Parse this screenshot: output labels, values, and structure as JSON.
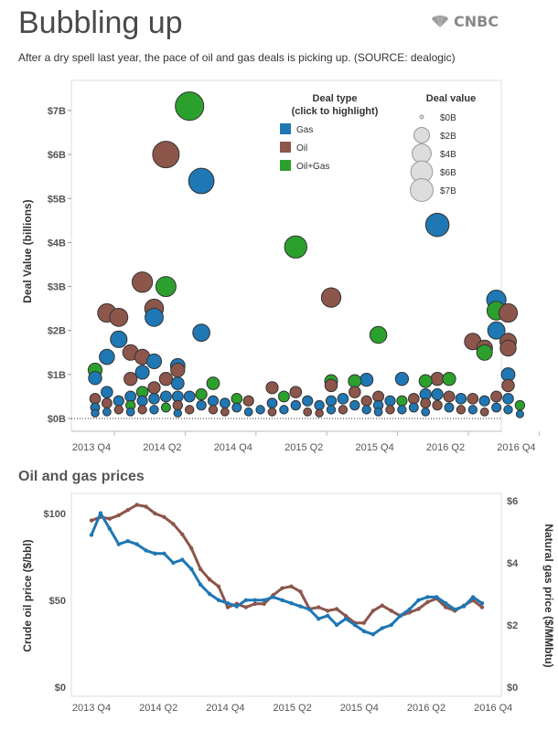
{
  "header": {
    "title": "Bubbling up",
    "logo_text": "CNBC",
    "subtitle": "After a dry spell last year, the pace of oil and gas deals is picking up. (SOURCE: dealogic)"
  },
  "section2": {
    "title": "Oil and gas prices"
  },
  "colors": {
    "Gas": "#1f77b4",
    "Oil": "#8c564b",
    "Oil+Gas": "#2ca02c",
    "gas_line": "#1f77b4",
    "oil_line": "#8c564b"
  },
  "chart_data": [
    {
      "type": "scatter",
      "title": "",
      "ylabel": "Deal Value (billions)",
      "xlabel": "",
      "ylim": [
        0,
        7.7
      ],
      "x_ticks": [
        "2013 Q4",
        "2014 Q2",
        "2014 Q4",
        "2015 Q2",
        "2015 Q4",
        "2016 Q2",
        "2016 Q4"
      ],
      "y_ticks": [
        "$0B",
        "$1B",
        "$2B",
        "$3B",
        "$4B",
        "$5B",
        "$6B",
        "$7B"
      ],
      "legend": {
        "type_title": "Deal type",
        "type_subtitle": "(click to highlight)",
        "types": [
          "Gas",
          "Oil",
          "Oil+Gas"
        ],
        "size_title": "Deal value",
        "sizes": [
          {
            "label": "$0B",
            "value": 0
          },
          {
            "label": "$2B",
            "value": 2
          },
          {
            "label": "$4B",
            "value": 4
          },
          {
            "label": "$6B",
            "value": 6
          },
          {
            "label": "$7B",
            "value": 7
          }
        ]
      },
      "points": [
        {
          "month": 0,
          "value": 1.1,
          "type": "Oil+Gas"
        },
        {
          "month": 0,
          "value": 0.92,
          "type": "Gas"
        },
        {
          "month": 0,
          "value": 0.45,
          "type": "Oil"
        },
        {
          "month": 0,
          "value": 0.25,
          "type": "Gas"
        },
        {
          "month": 0,
          "value": 0.12,
          "type": "Gas"
        },
        {
          "month": 1,
          "value": 2.4,
          "type": "Oil"
        },
        {
          "month": 1,
          "value": 1.4,
          "type": "Gas"
        },
        {
          "month": 1,
          "value": 0.6,
          "type": "Gas"
        },
        {
          "month": 1,
          "value": 0.35,
          "type": "Oil"
        },
        {
          "month": 1,
          "value": 0.15,
          "type": "Gas"
        },
        {
          "month": 2,
          "value": 2.3,
          "type": "Oil"
        },
        {
          "month": 2,
          "value": 1.8,
          "type": "Gas"
        },
        {
          "month": 2,
          "value": 0.4,
          "type": "Gas"
        },
        {
          "month": 2,
          "value": 0.2,
          "type": "Oil"
        },
        {
          "month": 3,
          "value": 1.5,
          "type": "Oil"
        },
        {
          "month": 3,
          "value": 0.9,
          "type": "Oil"
        },
        {
          "month": 3,
          "value": 0.5,
          "type": "Gas"
        },
        {
          "month": 3,
          "value": 0.3,
          "type": "Oil+Gas"
        },
        {
          "month": 3,
          "value": 0.15,
          "type": "Gas"
        },
        {
          "month": 4,
          "value": 3.1,
          "type": "Oil"
        },
        {
          "month": 4,
          "value": 1.4,
          "type": "Oil"
        },
        {
          "month": 4,
          "value": 1.05,
          "type": "Gas"
        },
        {
          "month": 4,
          "value": 0.6,
          "type": "Oil+Gas"
        },
        {
          "month": 4,
          "value": 0.4,
          "type": "Gas"
        },
        {
          "month": 4,
          "value": 0.2,
          "type": "Oil"
        },
        {
          "month": 5,
          "value": 2.5,
          "type": "Oil"
        },
        {
          "month": 5,
          "value": 2.3,
          "type": "Gas"
        },
        {
          "month": 5,
          "value": 1.3,
          "type": "Gas"
        },
        {
          "month": 5,
          "value": 0.7,
          "type": "Oil"
        },
        {
          "month": 5,
          "value": 0.45,
          "type": "Gas"
        },
        {
          "month": 5,
          "value": 0.2,
          "type": "Gas"
        },
        {
          "month": 6,
          "value": 3.0,
          "type": "Oil+Gas"
        },
        {
          "month": 6,
          "value": 6.0,
          "type": "Oil"
        },
        {
          "month": 6,
          "value": 0.9,
          "type": "Oil"
        },
        {
          "month": 6,
          "value": 0.5,
          "type": "Gas"
        },
        {
          "month": 6,
          "value": 0.25,
          "type": "Oil+Gas"
        },
        {
          "month": 7,
          "value": 1.2,
          "type": "Gas"
        },
        {
          "month": 7,
          "value": 1.1,
          "type": "Oil"
        },
        {
          "month": 7,
          "value": 0.8,
          "type": "Gas"
        },
        {
          "month": 7,
          "value": 0.5,
          "type": "Gas"
        },
        {
          "month": 7,
          "value": 0.3,
          "type": "Oil"
        },
        {
          "month": 7,
          "value": 0.12,
          "type": "Gas"
        },
        {
          "month": 8,
          "value": 7.1,
          "type": "Oil+Gas"
        },
        {
          "month": 8,
          "value": 0.5,
          "type": "Gas"
        },
        {
          "month": 8,
          "value": 0.2,
          "type": "Oil"
        },
        {
          "month": 9,
          "value": 5.4,
          "type": "Gas"
        },
        {
          "month": 9,
          "value": 1.95,
          "type": "Gas"
        },
        {
          "month": 9,
          "value": 0.55,
          "type": "Oil+Gas"
        },
        {
          "month": 9,
          "value": 0.3,
          "type": "Gas"
        },
        {
          "month": 10,
          "value": 0.8,
          "type": "Oil+Gas"
        },
        {
          "month": 10,
          "value": 0.4,
          "type": "Gas"
        },
        {
          "month": 10,
          "value": 0.2,
          "type": "Oil"
        },
        {
          "month": 11,
          "value": 0.35,
          "type": "Gas"
        },
        {
          "month": 11,
          "value": 0.15,
          "type": "Oil"
        },
        {
          "month": 12,
          "value": 0.45,
          "type": "Oil+Gas"
        },
        {
          "month": 12,
          "value": 0.25,
          "type": "Gas"
        },
        {
          "month": 13,
          "value": 0.4,
          "type": "Oil"
        },
        {
          "month": 13,
          "value": 0.15,
          "type": "Gas"
        },
        {
          "month": 14,
          "value": 0.2,
          "type": "Gas"
        },
        {
          "month": 15,
          "value": 0.7,
          "type": "Oil"
        },
        {
          "month": 15,
          "value": 0.35,
          "type": "Gas"
        },
        {
          "month": 15,
          "value": 0.15,
          "type": "Oil"
        },
        {
          "month": 16,
          "value": 0.5,
          "type": "Oil+Gas"
        },
        {
          "month": 16,
          "value": 0.2,
          "type": "Gas"
        },
        {
          "month": 17,
          "value": 3.9,
          "type": "Oil+Gas"
        },
        {
          "month": 17,
          "value": 0.6,
          "type": "Oil"
        },
        {
          "month": 17,
          "value": 0.3,
          "type": "Gas"
        },
        {
          "month": 18,
          "value": 0.4,
          "type": "Gas"
        },
        {
          "month": 18,
          "value": 0.15,
          "type": "Oil"
        },
        {
          "month": 19,
          "value": 0.3,
          "type": "Gas"
        },
        {
          "month": 19,
          "value": 0.12,
          "type": "Oil"
        },
        {
          "month": 20,
          "value": 2.75,
          "type": "Oil"
        },
        {
          "month": 20,
          "value": 0.85,
          "type": "Oil+Gas"
        },
        {
          "month": 20,
          "value": 0.75,
          "type": "Oil"
        },
        {
          "month": 20,
          "value": 0.4,
          "type": "Gas"
        },
        {
          "month": 20,
          "value": 0.2,
          "type": "Gas"
        },
        {
          "month": 21,
          "value": 0.45,
          "type": "Gas"
        },
        {
          "month": 21,
          "value": 0.2,
          "type": "Oil"
        },
        {
          "month": 22,
          "value": 0.85,
          "type": "Oil+Gas"
        },
        {
          "month": 22,
          "value": 0.6,
          "type": "Oil"
        },
        {
          "month": 22,
          "value": 0.3,
          "type": "Gas"
        },
        {
          "month": 23,
          "value": 0.88,
          "type": "Gas"
        },
        {
          "month": 23,
          "value": 0.4,
          "type": "Oil"
        },
        {
          "month": 23,
          "value": 0.2,
          "type": "Gas"
        },
        {
          "month": 24,
          "value": 1.9,
          "type": "Oil+Gas"
        },
        {
          "month": 24,
          "value": 0.5,
          "type": "Oil"
        },
        {
          "month": 24,
          "value": 0.3,
          "type": "Gas"
        },
        {
          "month": 24,
          "value": 0.15,
          "type": "Gas"
        },
        {
          "month": 25,
          "value": 0.4,
          "type": "Gas"
        },
        {
          "month": 25,
          "value": 0.2,
          "type": "Oil"
        },
        {
          "month": 26,
          "value": 0.9,
          "type": "Gas"
        },
        {
          "month": 26,
          "value": 0.4,
          "type": "Oil+Gas"
        },
        {
          "month": 26,
          "value": 0.2,
          "type": "Gas"
        },
        {
          "month": 27,
          "value": 0.45,
          "type": "Oil"
        },
        {
          "month": 27,
          "value": 0.25,
          "type": "Gas"
        },
        {
          "month": 28,
          "value": 0.85,
          "type": "Oil+Gas"
        },
        {
          "month": 28,
          "value": 0.55,
          "type": "Gas"
        },
        {
          "month": 28,
          "value": 0.35,
          "type": "Oil"
        },
        {
          "month": 28,
          "value": 0.15,
          "type": "Gas"
        },
        {
          "month": 29,
          "value": 4.4,
          "type": "Gas"
        },
        {
          "month": 29,
          "value": 0.9,
          "type": "Oil"
        },
        {
          "month": 29,
          "value": 0.55,
          "type": "Gas"
        },
        {
          "month": 29,
          "value": 0.3,
          "type": "Oil"
        },
        {
          "month": 30,
          "value": 0.9,
          "type": "Oil+Gas"
        },
        {
          "month": 30,
          "value": 0.5,
          "type": "Oil"
        },
        {
          "month": 30,
          "value": 0.25,
          "type": "Gas"
        },
        {
          "month": 31,
          "value": 0.45,
          "type": "Gas"
        },
        {
          "month": 31,
          "value": 0.2,
          "type": "Oil"
        },
        {
          "month": 32,
          "value": 1.75,
          "type": "Oil"
        },
        {
          "month": 32,
          "value": 0.45,
          "type": "Oil"
        },
        {
          "month": 32,
          "value": 0.2,
          "type": "Gas"
        },
        {
          "month": 33,
          "value": 1.6,
          "type": "Oil"
        },
        {
          "month": 33,
          "value": 1.5,
          "type": "Oil+Gas"
        },
        {
          "month": 33,
          "value": 0.4,
          "type": "Gas"
        },
        {
          "month": 33,
          "value": 0.15,
          "type": "Oil"
        },
        {
          "month": 34,
          "value": 2.7,
          "type": "Gas"
        },
        {
          "month": 34,
          "value": 2.45,
          "type": "Oil+Gas"
        },
        {
          "month": 34,
          "value": 2.0,
          "type": "Gas"
        },
        {
          "month": 34,
          "value": 0.5,
          "type": "Oil"
        },
        {
          "month": 34,
          "value": 0.25,
          "type": "Gas"
        },
        {
          "month": 35,
          "value": 2.4,
          "type": "Oil"
        },
        {
          "month": 35,
          "value": 1.75,
          "type": "Oil"
        },
        {
          "month": 35,
          "value": 1.6,
          "type": "Oil"
        },
        {
          "month": 35,
          "value": 1.0,
          "type": "Gas"
        },
        {
          "month": 35,
          "value": 0.75,
          "type": "Oil"
        },
        {
          "month": 35,
          "value": 0.45,
          "type": "Gas"
        },
        {
          "month": 35,
          "value": 0.2,
          "type": "Gas"
        },
        {
          "month": 36,
          "value": 0.3,
          "type": "Oil+Gas"
        },
        {
          "month": 36,
          "value": 0.1,
          "type": "Gas"
        }
      ]
    },
    {
      "type": "line",
      "title": "Oil and gas prices",
      "ylabel": "Crude oil price ($/bbl)",
      "ylabel_right": "Natural gas price  ($/MMbtu)",
      "ylim": [
        0,
        110
      ],
      "ylim_right": [
        0,
        6
      ],
      "x_ticks": [
        "2013 Q4",
        "2014 Q2",
        "2014 Q4",
        "2015 Q2",
        "2015 Q4",
        "2016 Q2",
        "2016 Q4"
      ],
      "y_ticks": [
        "$0",
        "$50",
        "$100"
      ],
      "y_ticks_right": [
        "$0",
        "$2",
        "$4",
        "$6"
      ],
      "series": [
        {
          "axis": "left",
          "color_key": "oil_line",
          "values": [
            96,
            98,
            97,
            99,
            102,
            105,
            104,
            100,
            98,
            94,
            88,
            80,
            68,
            62,
            58,
            46,
            48,
            46,
            48,
            48,
            53,
            57,
            58,
            55,
            45,
            46,
            44,
            45,
            41,
            37,
            37,
            44,
            47,
            44,
            41,
            43,
            45,
            49,
            51,
            46,
            44,
            47,
            50,
            46
          ]
        },
        {
          "axis": "right",
          "color_key": "gas_line",
          "values": [
            4.9,
            5.6,
            5.1,
            4.6,
            4.7,
            4.6,
            4.4,
            4.3,
            4.3,
            4.0,
            4.1,
            3.8,
            3.3,
            3.0,
            2.8,
            2.7,
            2.6,
            2.8,
            2.8,
            2.8,
            2.9,
            2.8,
            2.7,
            2.6,
            2.5,
            2.2,
            2.3,
            2.0,
            2.2,
            2.0,
            1.8,
            1.7,
            1.9,
            2.0,
            2.3,
            2.5,
            2.8,
            2.9,
            2.9,
            2.7,
            2.5,
            2.6,
            2.9,
            2.7
          ]
        }
      ]
    }
  ]
}
